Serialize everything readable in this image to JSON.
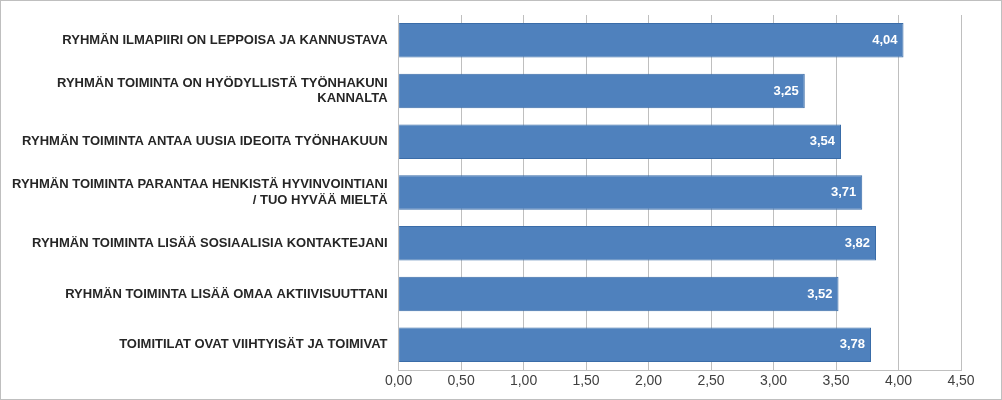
{
  "chart_data": {
    "type": "bar",
    "orientation": "horizontal",
    "categories": [
      "RYHMÄN ILMAPIIRI ON LEPPOISA JA KANNUSTAVA",
      "RYHMÄN TOIMINTA ON HYÖDYLLISTÄ TYÖNHAKUNI KANNALTA",
      "RYHMÄN TOIMINTA ANTAA UUSIA IDEOITA TYÖNHAKUUN",
      "RYHMÄN TOIMINTA PARANTAA HENKISTÄ HYVINVOINTIANI / TUO HYVÄÄ MIELTÄ",
      "RYHMÄN TOIMINTA LISÄÄ SOSIAALISIA KONTAKTEJANI",
      "RYHMÄN TOIMINTA LISÄÄ OMAA AKTIIVISUUTTANI",
      "TOIMITILAT OVAT VIIHTYISÄT JA TOIMIVAT"
    ],
    "values": [
      4.04,
      3.25,
      3.54,
      3.71,
      3.82,
      3.52,
      3.78
    ],
    "value_labels": [
      "4,04",
      "3,25",
      "3,54",
      "3,71",
      "3,82",
      "3,52",
      "3,78"
    ],
    "color": "#4f81bd",
    "xlim": [
      0,
      4.5
    ],
    "xticks": [
      {
        "value": 0,
        "label": "0,00"
      },
      {
        "value": 0.5,
        "label": "0,50"
      },
      {
        "value": 1,
        "label": "1,00"
      },
      {
        "value": 1.5,
        "label": "1,50"
      },
      {
        "value": 2,
        "label": "2,00"
      },
      {
        "value": 2.5,
        "label": "2,50"
      },
      {
        "value": 3,
        "label": "3,00"
      },
      {
        "value": 3.5,
        "label": "3,50"
      },
      {
        "value": 4,
        "label": "4,00"
      },
      {
        "value": 4.5,
        "label": "4,50"
      }
    ],
    "grid": true,
    "data_labels": true
  }
}
